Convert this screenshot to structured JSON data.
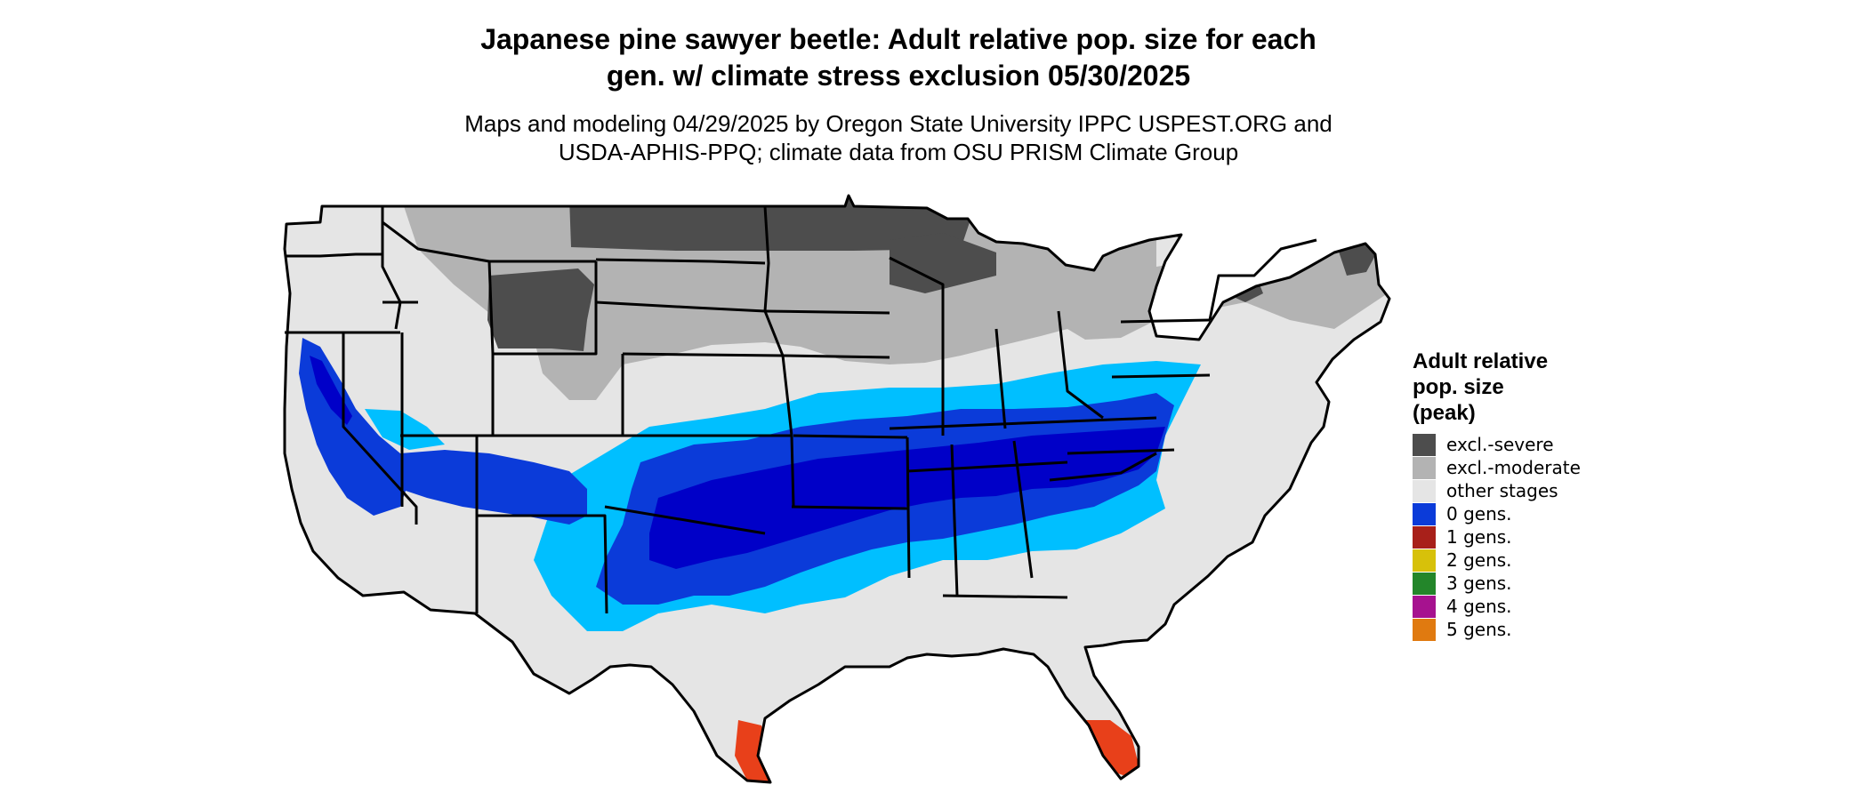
{
  "title_lines": [
    "Japanese pine sawyer beetle: Adult relative pop. size for each",
    "gen. w/ climate stress exclusion 05/30/2025"
  ],
  "subtitle_lines": [
    "Maps and modeling 04/29/2025 by Oregon State University IPPC USPEST.ORG and",
    "USDA-APHIS-PPQ; climate data from OSU PRISM Climate Group"
  ],
  "legend": {
    "title_lines": [
      "Adult relative",
      "pop. size",
      "(peak)"
    ],
    "items": [
      {
        "label": "excl.-severe",
        "color": "#4d4d4d"
      },
      {
        "label": "excl.-moderate",
        "color": "#b3b3b3"
      },
      {
        "label": "other stages",
        "color": "#e5e5e5"
      },
      {
        "label": "0 gens.",
        "color": "#0b3bd9"
      },
      {
        "label": "1 gens.",
        "color": "#a8201a"
      },
      {
        "label": "2 gens.",
        "color": "#d7c10a"
      },
      {
        "label": "3 gens.",
        "color": "#23862a"
      },
      {
        "label": "4 gens.",
        "color": "#a6128f"
      },
      {
        "label": "5 gens.",
        "color": "#e07a10"
      }
    ]
  },
  "map_colors": {
    "land": "#e5e5e5",
    "excl_severe": "#4d4d4d",
    "excl_moderate": "#b3b3b3",
    "light_blue": "#00bfff",
    "mid_blue": "#0b3bd9",
    "dark_blue": "#0000c8",
    "red_orange": "#e8401a",
    "border": "#000000"
  }
}
